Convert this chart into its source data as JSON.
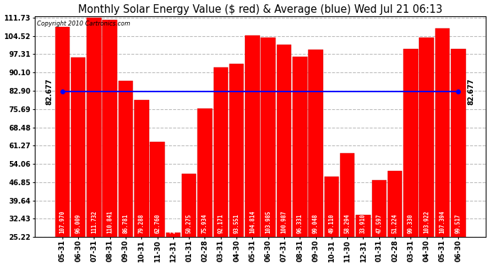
{
  "title": "Monthly Solar Energy Value ($ red) & Average (blue) Wed Jul 21 06:13",
  "copyright": "Copyright 2010 Cartronics.com",
  "categories": [
    "05-31",
    "06-30",
    "07-31",
    "08-31",
    "09-30",
    "10-31",
    "11-30",
    "12-31",
    "01-31",
    "02-28",
    "03-31",
    "04-30",
    "05-31",
    "06-30",
    "07-31",
    "08-31",
    "09-30",
    "10-31",
    "11-30",
    "12-31",
    "01-31",
    "02-28",
    "03-31",
    "04-30",
    "05-31",
    "06-30"
  ],
  "values": [
    107.97,
    96.009,
    111.732,
    110.841,
    86.781,
    79.288,
    62.76,
    26.918,
    50.275,
    75.934,
    92.171,
    93.551,
    104.814,
    103.985,
    100.987,
    96.331,
    99.048,
    49.11,
    58.294,
    33.91,
    47.597,
    51.224,
    99.33,
    103.922,
    107.394,
    99.517
  ],
  "average": 82.677,
  "bar_color": "#ff0000",
  "avg_line_color": "#0000ff",
  "background_color": "#ffffff",
  "plot_bg_color": "#ffffff",
  "grid_color": "#bbbbbb",
  "yticks": [
    25.22,
    32.43,
    39.64,
    46.85,
    54.06,
    61.27,
    68.48,
    75.69,
    82.9,
    90.1,
    97.31,
    104.52,
    111.73
  ],
  "ymin": 25.22,
  "ymax": 111.73,
  "title_fontsize": 10.5,
  "bar_label_fontsize": 5.5,
  "tick_fontsize": 7,
  "avg_label": "82.677"
}
